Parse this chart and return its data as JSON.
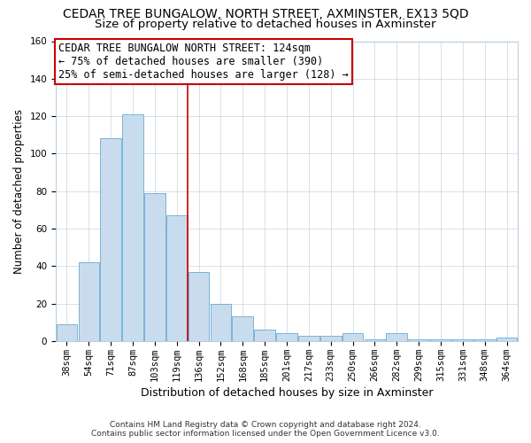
{
  "title": "CEDAR TREE BUNGALOW, NORTH STREET, AXMINSTER, EX13 5QD",
  "subtitle": "Size of property relative to detached houses in Axminster",
  "xlabel": "Distribution of detached houses by size in Axminster",
  "ylabel": "Number of detached properties",
  "categories": [
    "38sqm",
    "54sqm",
    "71sqm",
    "87sqm",
    "103sqm",
    "119sqm",
    "136sqm",
    "152sqm",
    "168sqm",
    "185sqm",
    "201sqm",
    "217sqm",
    "233sqm",
    "250sqm",
    "266sqm",
    "282sqm",
    "299sqm",
    "315sqm",
    "331sqm",
    "348sqm",
    "364sqm"
  ],
  "values": [
    9,
    42,
    108,
    121,
    79,
    67,
    37,
    20,
    13,
    6,
    4,
    3,
    3,
    4,
    1,
    4,
    1,
    1,
    1,
    1,
    2
  ],
  "bar_color": "#c9dced",
  "bar_edge_color": "#6aaad4",
  "annotation_line1": "CEDAR TREE BUNGALOW NORTH STREET: 124sqm",
  "annotation_line2": "← 75% of detached houses are smaller (390)",
  "annotation_line3": "25% of semi-detached houses are larger (128) →",
  "vline_color": "#cc0000",
  "vline_x": 5.5,
  "ylim": [
    0,
    160
  ],
  "yticks": [
    0,
    20,
    40,
    60,
    80,
    100,
    120,
    140,
    160
  ],
  "footer_line1": "Contains HM Land Registry data © Crown copyright and database right 2024.",
  "footer_line2": "Contains public sector information licensed under the Open Government Licence v3.0.",
  "bg_color": "#ffffff",
  "grid_color": "#c8d4e0",
  "title_fontsize": 10,
  "subtitle_fontsize": 9.5,
  "annotation_fontsize": 8.5,
  "tick_fontsize": 7.5,
  "ylabel_fontsize": 8.5,
  "xlabel_fontsize": 9,
  "footer_fontsize": 6.5
}
